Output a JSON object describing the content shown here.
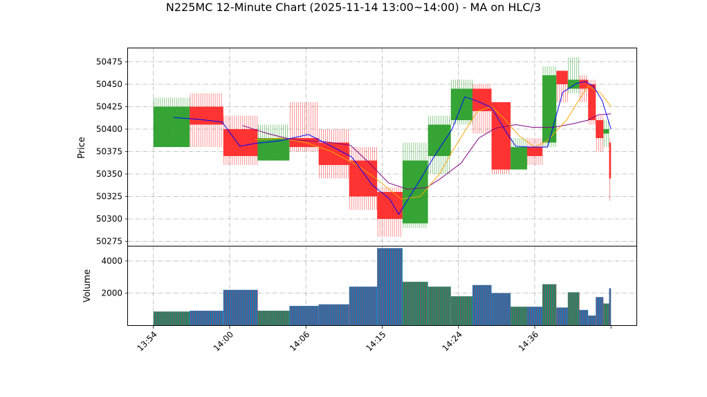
{
  "chart_data": {
    "type": "ohlc-candlestick-with-volume",
    "title": "N225MC 12-Minute Chart (2025-11-14 13:00~14:00) - MA on HLC/3",
    "price_panel": {
      "ylabel": "Price",
      "ylim": [
        50270,
        50490
      ],
      "yticks": [
        50275,
        50300,
        50325,
        50350,
        50375,
        50400,
        50425,
        50450,
        50475
      ]
    },
    "volume_panel": {
      "ylabel": "Volume",
      "ylim": [
        0,
        4900
      ],
      "yticks": [
        2000,
        4000
      ]
    },
    "x_axis": {
      "tick_labels": [
        "13:54",
        "14:00",
        "14:06",
        "14:15",
        "14:24",
        "14:36"
      ],
      "tick_positions": [
        0,
        6,
        12,
        18,
        24,
        30
      ],
      "xlim": [
        -2,
        38
      ],
      "last_index": 36
    },
    "colors": {
      "up": "#2ca02c",
      "down": "#ff2a2a",
      "ma_short": "#0000ff",
      "ma_mid": "#ffa500",
      "ma_long": "#800080",
      "volume_bar": "#1f77b4",
      "volume_stripe": "#d62728",
      "grid": "#b0b0b0"
    },
    "candles": [
      {
        "x0": 0.0,
        "x1": 2.85,
        "o": 50380,
        "h": 50435,
        "l": 50380,
        "c": 50425,
        "v": 850
      },
      {
        "x0": 2.85,
        "x1": 5.5,
        "o": 50425,
        "h": 50440,
        "l": 50380,
        "c": 50405,
        "v": 900
      },
      {
        "x0": 5.5,
        "x1": 8.2,
        "o": 50400,
        "h": 50415,
        "l": 50360,
        "c": 50370,
        "v": 2200
      },
      {
        "x0": 8.2,
        "x1": 10.7,
        "o": 50365,
        "h": 50405,
        "l": 50365,
        "c": 50390,
        "v": 900
      },
      {
        "x0": 10.7,
        "x1": 13.0,
        "o": 50390,
        "h": 50430,
        "l": 50375,
        "c": 50380,
        "v": 1200
      },
      {
        "x0": 13.0,
        "x1": 15.4,
        "o": 50385,
        "h": 50400,
        "l": 50345,
        "c": 50360,
        "v": 1300
      },
      {
        "x0": 15.4,
        "x1": 17.6,
        "o": 50365,
        "h": 50380,
        "l": 50310,
        "c": 50325,
        "v": 2400
      },
      {
        "x0": 17.6,
        "x1": 19.6,
        "o": 50330,
        "h": 50335,
        "l": 50280,
        "c": 50300,
        "v": 4800
      },
      {
        "x0": 19.6,
        "x1": 21.6,
        "o": 50295,
        "h": 50385,
        "l": 50290,
        "c": 50365,
        "v": 2700
      },
      {
        "x0": 21.6,
        "x1": 23.4,
        "o": 50370,
        "h": 50415,
        "l": 50350,
        "c": 50405,
        "v": 2400
      },
      {
        "x0": 23.4,
        "x1": 25.1,
        "o": 50410,
        "h": 50455,
        "l": 50405,
        "c": 50445,
        "v": 1800
      },
      {
        "x0": 25.1,
        "x1": 26.6,
        "o": 50445,
        "h": 50450,
        "l": 50395,
        "c": 50420,
        "v": 2500
      },
      {
        "x0": 26.6,
        "x1": 28.1,
        "o": 50430,
        "h": 50430,
        "l": 50350,
        "c": 50355,
        "v": 2000
      },
      {
        "x0": 28.1,
        "x1": 29.4,
        "o": 50355,
        "h": 50390,
        "l": 50355,
        "c": 50380,
        "v": 1150
      },
      {
        "x0": 29.4,
        "x1": 30.6,
        "o": 50380,
        "h": 50390,
        "l": 50360,
        "c": 50370,
        "v": 1150
      },
      {
        "x0": 30.6,
        "x1": 31.7,
        "o": 50385,
        "h": 50470,
        "l": 50380,
        "c": 50460,
        "v": 2550
      },
      {
        "x0": 31.7,
        "x1": 32.6,
        "o": 50465,
        "h": 50465,
        "l": 50430,
        "c": 50450,
        "v": 1100
      },
      {
        "x0": 32.6,
        "x1": 33.5,
        "o": 50445,
        "h": 50480,
        "l": 50440,
        "c": 50455,
        "v": 2050
      },
      {
        "x0": 33.5,
        "x1": 34.2,
        "o": 50455,
        "h": 50460,
        "l": 50430,
        "c": 50445,
        "v": 950
      },
      {
        "x0": 34.2,
        "x1": 34.8,
        "o": 50450,
        "h": 50455,
        "l": 50405,
        "c": 50410,
        "v": 600
      },
      {
        "x0": 34.8,
        "x1": 35.4,
        "o": 50410,
        "h": 50415,
        "l": 50375,
        "c": 50390,
        "v": 1750
      },
      {
        "x0": 35.4,
        "x1": 35.85,
        "o": 50395,
        "h": 50410,
        "l": 50380,
        "c": 50400,
        "v": 1350
      },
      {
        "x0": 35.85,
        "x1": 36.0,
        "o": 50385,
        "h": 50390,
        "l": 50320,
        "c": 50345,
        "v": 2300
      }
    ],
    "ma_short": [
      [
        1.6,
        50413
      ],
      [
        3.5,
        50411
      ],
      [
        5.4,
        50408
      ],
      [
        6.8,
        50381
      ],
      [
        8.0,
        50384
      ],
      [
        10.0,
        50387
      ],
      [
        12.2,
        50394
      ],
      [
        14.0,
        50381
      ],
      [
        15.6,
        50369
      ],
      [
        17.2,
        50338
      ],
      [
        18.6,
        50322
      ],
      [
        19.3,
        50305
      ],
      [
        20.3,
        50328
      ],
      [
        22.2,
        50372
      ],
      [
        23.5,
        50400
      ],
      [
        24.5,
        50436
      ],
      [
        25.5,
        50431
      ],
      [
        26.6,
        50424
      ],
      [
        27.7,
        50398
      ],
      [
        28.5,
        50381
      ],
      [
        29.6,
        50380
      ],
      [
        31.0,
        50380
      ],
      [
        32.2,
        50441
      ],
      [
        33.3,
        50451
      ],
      [
        34.0,
        50453
      ],
      [
        34.6,
        50448
      ],
      [
        35.3,
        50432
      ],
      [
        36.0,
        50400
      ]
    ],
    "ma_mid": [
      [
        8.0,
        50388
      ],
      [
        10.0,
        50390
      ],
      [
        12.0,
        50385
      ],
      [
        14.0,
        50375
      ],
      [
        16.0,
        50360
      ],
      [
        17.5,
        50345
      ],
      [
        19.5,
        50322
      ],
      [
        21.0,
        50325
      ],
      [
        22.5,
        50350
      ],
      [
        23.5,
        50375
      ],
      [
        24.6,
        50400
      ],
      [
        25.5,
        50420
      ],
      [
        26.6,
        50425
      ],
      [
        27.5,
        50413
      ],
      [
        28.8,
        50392
      ],
      [
        30.0,
        50380
      ],
      [
        31.0,
        50387
      ],
      [
        32.5,
        50410
      ],
      [
        33.5,
        50433
      ],
      [
        34.2,
        50448
      ],
      [
        35.2,
        50440
      ],
      [
        36.0,
        50425
      ]
    ],
    "ma_long": [
      [
        7.0,
        50404
      ],
      [
        9.0,
        50395
      ],
      [
        11.0,
        50388
      ],
      [
        13.5,
        50386
      ],
      [
        15.5,
        50382
      ],
      [
        17.0,
        50362
      ],
      [
        18.5,
        50340
      ],
      [
        20.0,
        50333
      ],
      [
        21.5,
        50335
      ],
      [
        22.5,
        50344
      ],
      [
        24.2,
        50362
      ],
      [
        25.6,
        50390
      ],
      [
        26.9,
        50401
      ],
      [
        28.5,
        50405
      ],
      [
        29.8,
        50402
      ],
      [
        31.5,
        50402
      ],
      [
        33.0,
        50406
      ],
      [
        34.2,
        50410
      ],
      [
        35.0,
        50416
      ],
      [
        36.0,
        50417
      ]
    ]
  }
}
